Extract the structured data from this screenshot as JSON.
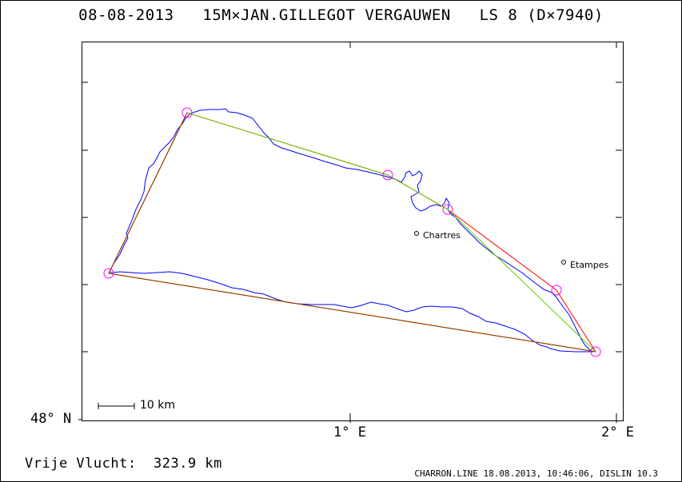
{
  "header": {
    "title": "08-08-2013   15M×JAN.GILLEGOT VERGAUWEN   LS 8 (D×7940)"
  },
  "axes": {
    "lat_label": "48° N",
    "lon_labels": [
      "1° E",
      "2° E"
    ]
  },
  "scale_bar": {
    "label": "10 km"
  },
  "places": [
    {
      "name": "Chartres"
    },
    {
      "name": "Etampes"
    }
  ],
  "footer": {
    "distance_text": "Vrije Vlucht:  323.9 km",
    "credit": "CHARRON.LINE 18.08.2013, 10:46:06, DISLIN 10.3"
  },
  "colors": {
    "track": "#0000ff",
    "declared_route": "#ff0000",
    "optimized_route": "#00cc00",
    "turnpoint": "#ff00ff",
    "frame": "#000000"
  }
}
